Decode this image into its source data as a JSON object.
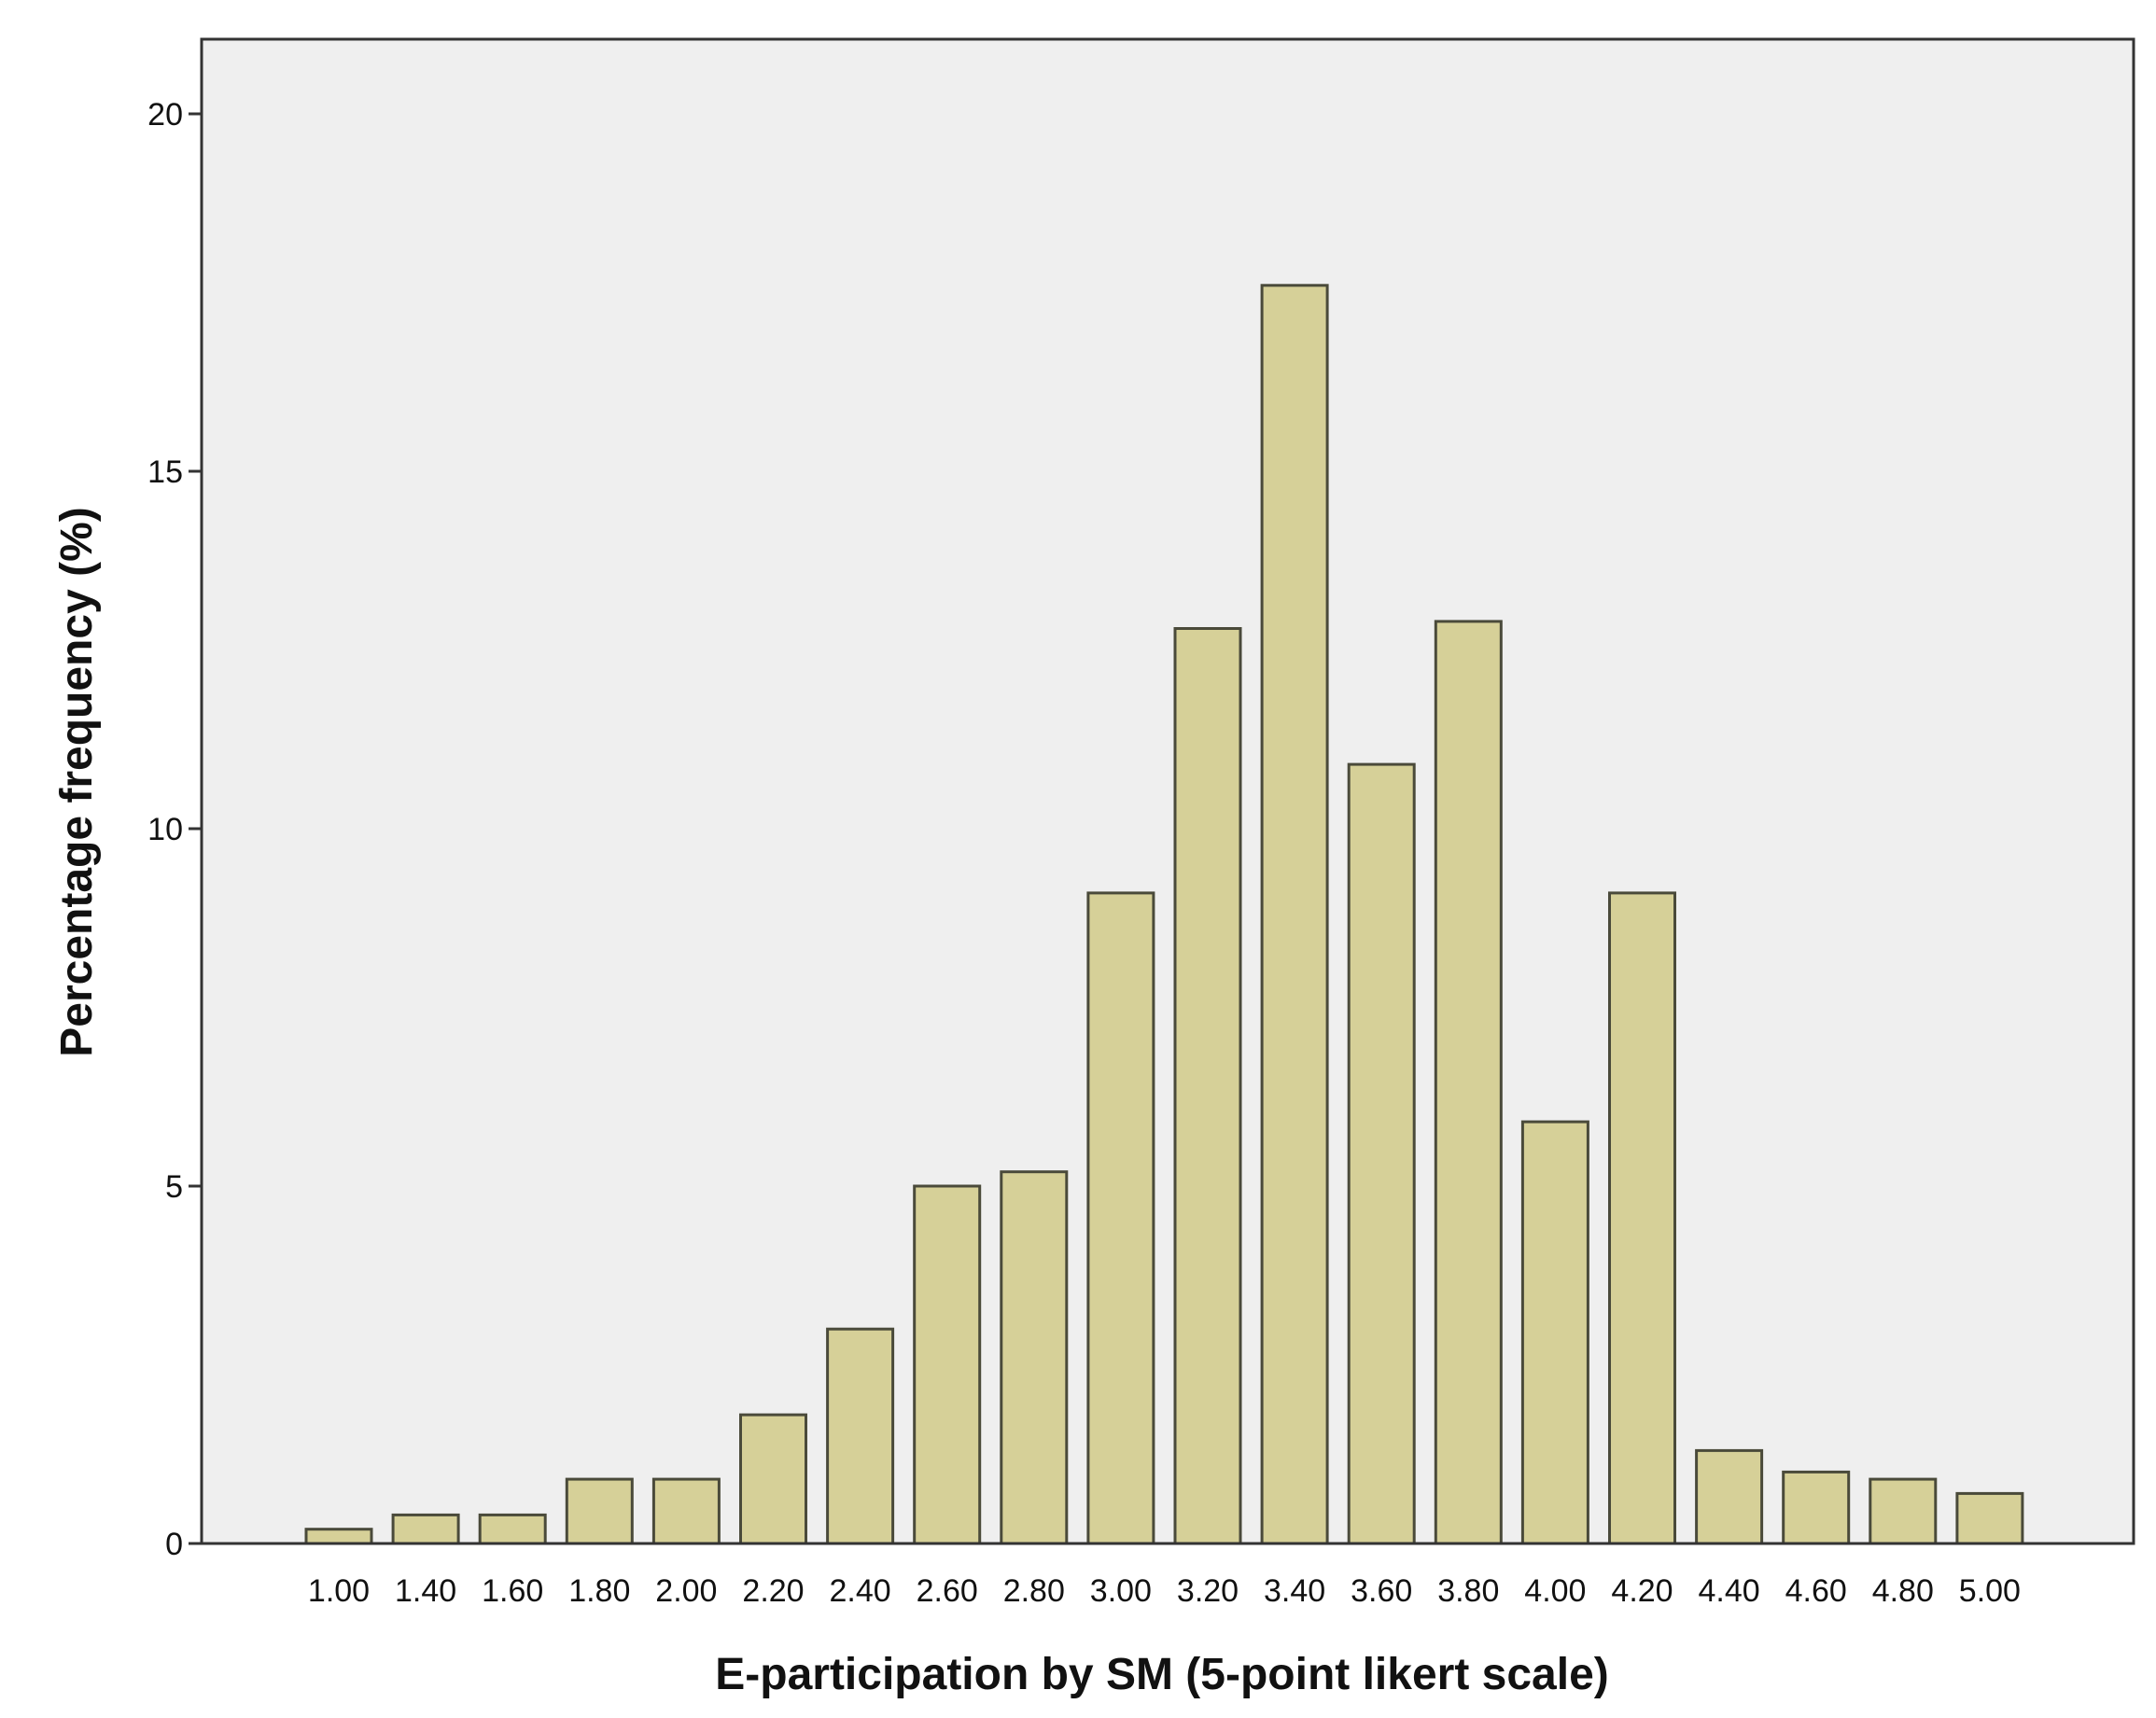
{
  "chart_data": {
    "type": "bar",
    "title": "",
    "xlabel": "E-participation by SM (5-point likert scale)",
    "ylabel": "Percentage frequency (%)",
    "categories": [
      "1.00",
      "1.40",
      "1.60",
      "1.80",
      "2.00",
      "2.20",
      "2.40",
      "2.60",
      "2.80",
      "3.00",
      "3.20",
      "3.40",
      "3.60",
      "3.80",
      "4.00",
      "4.20",
      "4.40",
      "4.60",
      "4.80",
      "5.00"
    ],
    "values": [
      0.2,
      0.4,
      0.4,
      0.9,
      0.9,
      1.8,
      3.0,
      5.0,
      5.2,
      9.1,
      12.8,
      17.6,
      10.9,
      12.9,
      5.9,
      9.1,
      1.3,
      1.0,
      0.9,
      0.7
    ],
    "ylim": [
      0,
      20
    ],
    "yticks": [
      "0",
      "5",
      "10",
      "15",
      "20"
    ],
    "grid": false,
    "legend": "none",
    "colors": {
      "bar_fill": "#d6d098",
      "bar_stroke": "#4a4a3a",
      "plot_background": "#efefef",
      "frame": "#333333"
    }
  }
}
